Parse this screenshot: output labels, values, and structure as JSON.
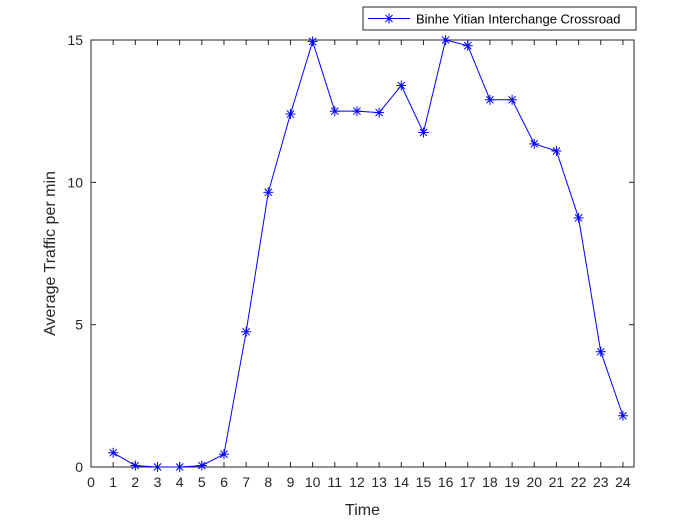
{
  "chart_data": {
    "type": "line",
    "title": "",
    "xlabel": "Time",
    "ylabel": "Average Traffic per min",
    "x_ticks": [
      0,
      1,
      2,
      3,
      4,
      5,
      6,
      7,
      8,
      9,
      10,
      11,
      12,
      13,
      14,
      15,
      16,
      17,
      18,
      19,
      20,
      21,
      22,
      23,
      24
    ],
    "y_ticks": [
      0,
      5,
      10,
      15
    ],
    "xlim": [
      0,
      24.5
    ],
    "ylim": [
      0,
      15
    ],
    "grid": false,
    "legend_position": "top-right",
    "series": [
      {
        "name": "Binhe Yitian Interchange Crossroad",
        "color": "#0000ff",
        "marker": "asterisk",
        "x": [
          1,
          2,
          3,
          4,
          5,
          6,
          7,
          8,
          9,
          10,
          11,
          12,
          13,
          14,
          15,
          16,
          17,
          18,
          19,
          20,
          21,
          22,
          23,
          24
        ],
        "y": [
          0.5,
          0.05,
          0.0,
          0.0,
          0.05,
          0.45,
          4.75,
          9.65,
          12.4,
          14.95,
          12.5,
          12.5,
          12.45,
          13.4,
          11.75,
          15.0,
          14.8,
          12.9,
          12.9,
          11.35,
          11.1,
          8.75,
          4.05,
          1.8
        ]
      }
    ]
  }
}
